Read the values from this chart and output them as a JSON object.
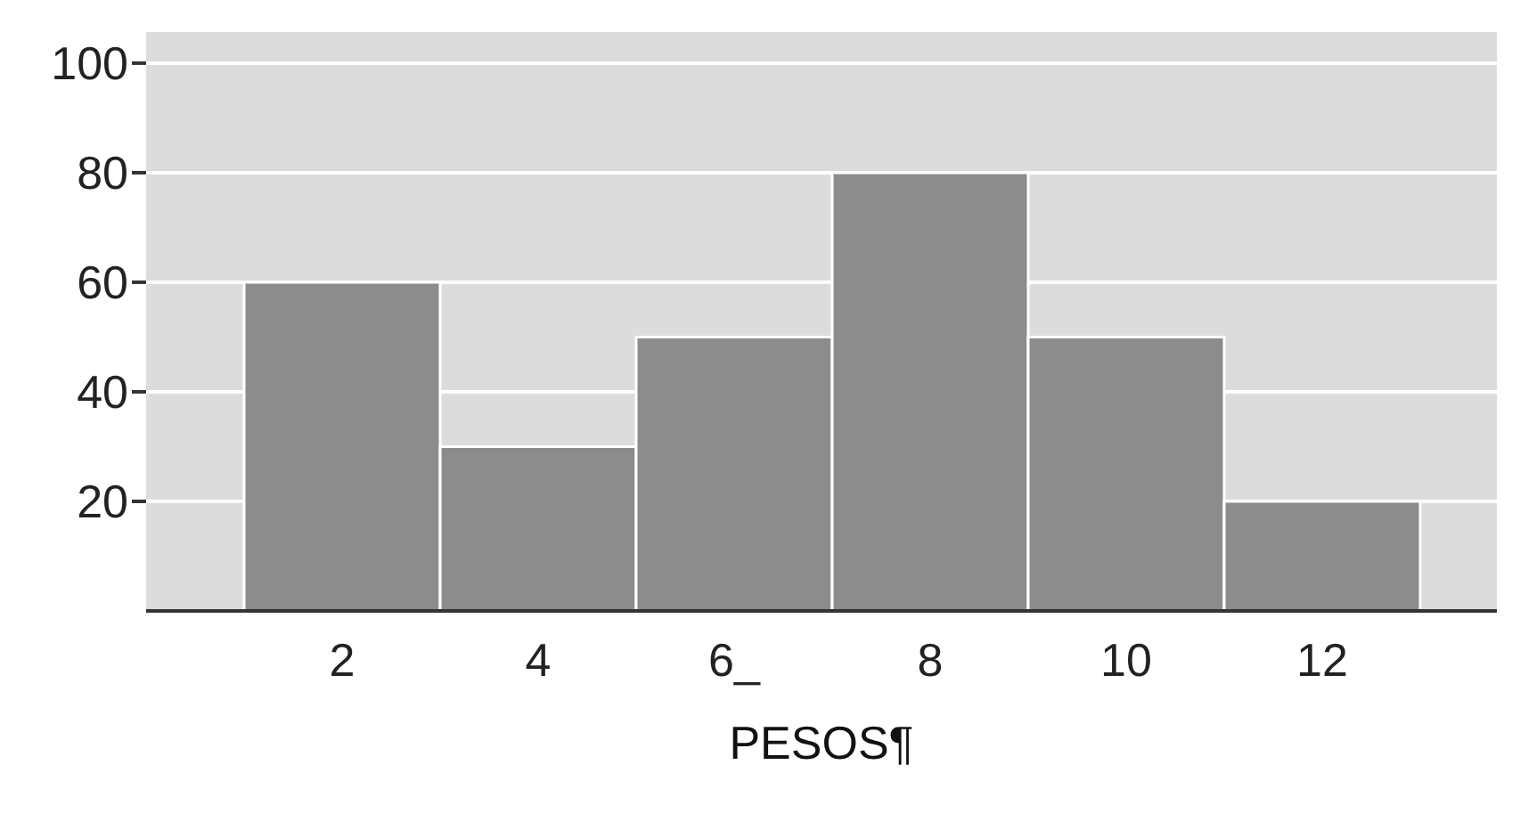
{
  "chart_data": {
    "type": "bar",
    "xlabel": "PESOS¶",
    "categories": [
      "2",
      "4",
      "6_",
      "8",
      "10",
      "12"
    ],
    "values": [
      60,
      30,
      50,
      80,
      50,
      20
    ],
    "color": "#8c8c8e",
    "ylim": [
      0,
      106
    ],
    "yticks": [
      20,
      40,
      60,
      80,
      100
    ],
    "grid": "y"
  }
}
